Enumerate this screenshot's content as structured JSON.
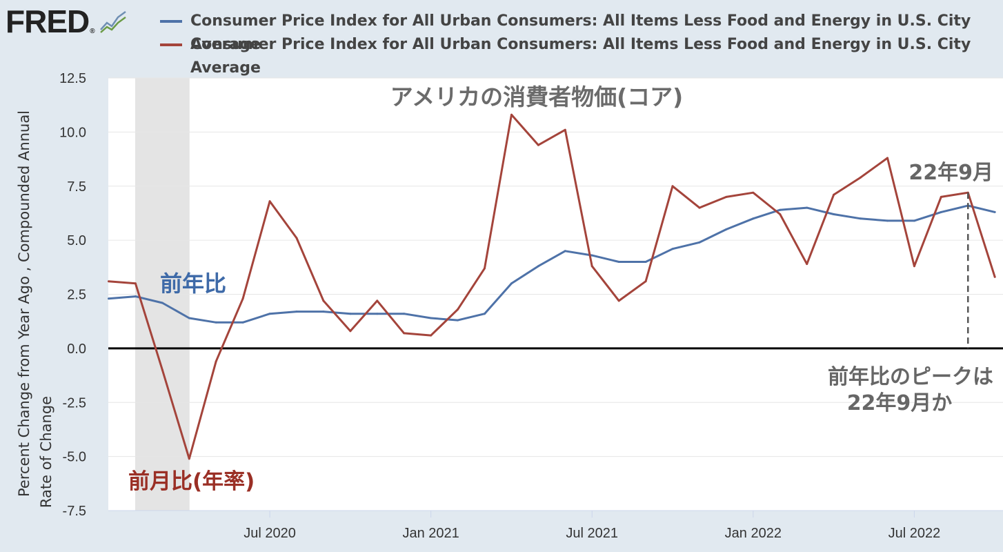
{
  "brand": {
    "name": "FRED",
    "registered": "®"
  },
  "legend": [
    {
      "label": "Consumer Price Index for All Urban Consumers: All Items Less Food and Energy in U.S. City Average",
      "color": "#4e72a8"
    },
    {
      "label": "Consumer Price Index for All Urban Consumers: All Items Less Food and Energy in U.S. City Average",
      "color": "#a4443b"
    }
  ],
  "annotations": {
    "title": "アメリカの消費者物価(コア)",
    "yoy_label": "前年比",
    "mom_label": "前月比(年率)",
    "peak_marker": "22年9月",
    "peak_note_line1": "前年比のピークは",
    "peak_note_line2": "22年9月か"
  },
  "chart_data": {
    "type": "line",
    "ylabel_line1": "Percent Change from Year Ago , Compounded Annual",
    "ylabel_line2": "Rate of Change",
    "ylim": [
      -7.5,
      12.5
    ],
    "yticks": [
      "12.5",
      "10.0",
      "7.5",
      "5.0",
      "2.5",
      "0.0",
      "-2.5",
      "-5.0",
      "-7.5"
    ],
    "xticks": [
      "Jul 2020",
      "Jan 2021",
      "Jul 2021",
      "Jan 2022",
      "Jul 2022"
    ],
    "x": [
      "2020-01",
      "2020-02",
      "2020-03",
      "2020-04",
      "2020-05",
      "2020-06",
      "2020-07",
      "2020-08",
      "2020-09",
      "2020-10",
      "2020-11",
      "2020-12",
      "2021-01",
      "2021-02",
      "2021-03",
      "2021-04",
      "2021-05",
      "2021-06",
      "2021-07",
      "2021-08",
      "2021-09",
      "2021-10",
      "2021-11",
      "2021-12",
      "2022-01",
      "2022-02",
      "2022-03",
      "2022-04",
      "2022-05",
      "2022-06",
      "2022-07",
      "2022-08",
      "2022-09",
      "2022-10"
    ],
    "recession": [
      "2020-02",
      "2020-04"
    ],
    "zero_line": true,
    "series": [
      {
        "values": [
          2.3,
          2.4,
          2.1,
          1.4,
          1.2,
          1.2,
          1.6,
          1.7,
          1.7,
          1.6,
          1.6,
          1.6,
          1.4,
          1.3,
          1.6,
          3.0,
          3.8,
          4.5,
          4.3,
          4.0,
          4.0,
          4.6,
          4.9,
          5.5,
          6.0,
          6.4,
          6.5,
          6.2,
          6.0,
          5.9,
          5.9,
          6.3,
          6.6,
          6.3
        ],
        "color": "#4e72a8"
      },
      {
        "values": [
          3.1,
          3.0,
          -1.0,
          -5.1,
          -0.6,
          2.3,
          6.8,
          5.1,
          2.2,
          0.8,
          2.2,
          0.7,
          0.6,
          1.8,
          3.7,
          10.8,
          9.4,
          10.1,
          3.8,
          2.2,
          3.1,
          7.5,
          6.5,
          7.0,
          7.2,
          6.2,
          3.9,
          7.1,
          7.9,
          8.8,
          3.8,
          7.0,
          7.2,
          3.3
        ],
        "color": "#a4443b"
      }
    ]
  }
}
